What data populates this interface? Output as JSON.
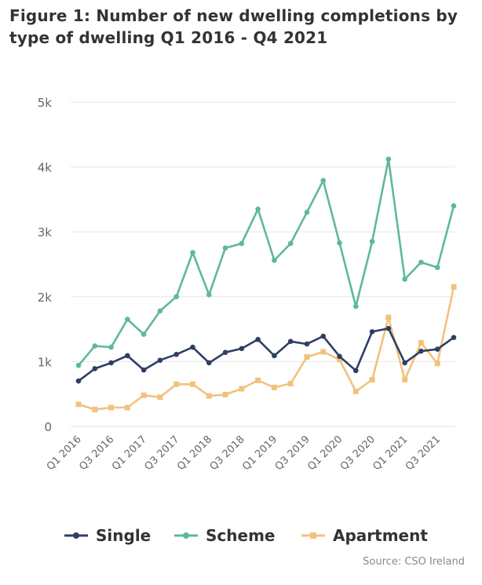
{
  "title": "Figure 1: Number of new dwelling completions by type of dwelling Q1 2016 - Q4 2021",
  "source": "Source: CSO Ireland",
  "chart_data": {
    "type": "line",
    "title": "Figure 1: Number of new dwelling completions by type of dwelling Q1 2016 - Q4 2021",
    "xlabel": "",
    "ylabel": "",
    "ylim": [
      0,
      5000
    ],
    "y_ticks": [
      0,
      1000,
      2000,
      3000,
      4000,
      5000
    ],
    "y_tick_labels": [
      "0",
      "1k",
      "2k",
      "3k",
      "4k",
      "5k"
    ],
    "grid": true,
    "legend_position": "bottom",
    "categories": [
      "Q1 2016",
      "Q2 2016",
      "Q3 2016",
      "Q4 2016",
      "Q1 2017",
      "Q2 2017",
      "Q3 2017",
      "Q4 2017",
      "Q1 2018",
      "Q2 2018",
      "Q3 2018",
      "Q4 2018",
      "Q1 2019",
      "Q2 2019",
      "Q3 2019",
      "Q4 2019",
      "Q1 2020",
      "Q2 2020",
      "Q3 2020",
      "Q4 2020",
      "Q1 2021",
      "Q2 2021",
      "Q3 2021",
      "Q4 2021"
    ],
    "x_tick_labels": [
      "Q1 2016",
      "Q3 2016",
      "Q1 2017",
      "Q3 2017",
      "Q1 2018",
      "Q3 2018",
      "Q1 2019",
      "Q3 2019",
      "Q1 2020",
      "Q3 2020",
      "Q1 2021",
      "Q3 2021"
    ],
    "series": [
      {
        "name": "Single",
        "color": "#2f3f63",
        "values": [
          700,
          890,
          980,
          1090,
          870,
          1020,
          1110,
          1220,
          980,
          1140,
          1200,
          1340,
          1090,
          1310,
          1270,
          1390,
          1080,
          860,
          1460,
          1510,
          980,
          1160,
          1190,
          1370
        ]
      },
      {
        "name": "Scheme",
        "color": "#5fb89c",
        "values": [
          940,
          1240,
          1220,
          1650,
          1420,
          1780,
          2000,
          2680,
          2030,
          2750,
          2820,
          3350,
          2560,
          2820,
          3300,
          3790,
          2830,
          1850,
          2850,
          4120,
          2270,
          2530,
          2450,
          3400
        ]
      },
      {
        "name": "Apartment",
        "color": "#f2c27c",
        "values": [
          340,
          260,
          290,
          290,
          480,
          450,
          650,
          650,
          470,
          490,
          580,
          710,
          600,
          660,
          1070,
          1150,
          1030,
          540,
          720,
          1680,
          720,
          1290,
          970,
          2150
        ]
      }
    ]
  }
}
